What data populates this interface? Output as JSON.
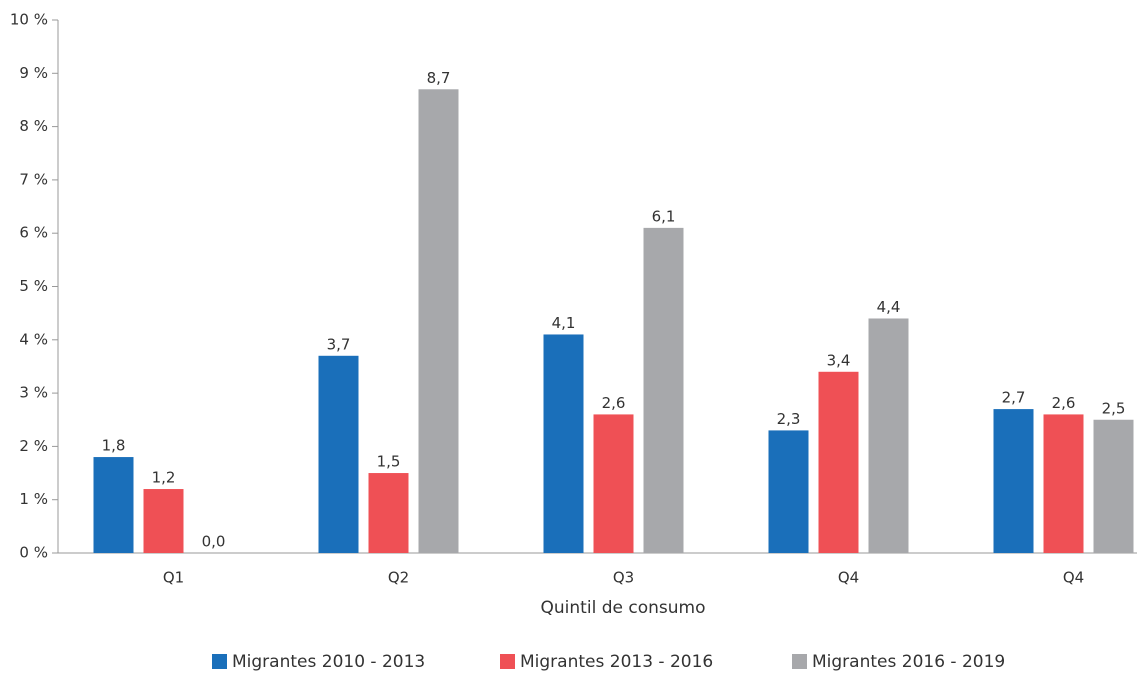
{
  "chart_data": {
    "type": "bar",
    "xlabel": "Quintil de consumo",
    "categories": [
      "Q1",
      "Q2",
      "Q3",
      "Q4",
      "Q4"
    ],
    "series": [
      {
        "name": "Migrantes 2010 - 2013",
        "color": "#1a6fba",
        "values": [
          1.8,
          3.7,
          4.1,
          2.3,
          2.7
        ],
        "value_labels": [
          "1,8",
          "3,7",
          "4,1",
          "2,3",
          "2,7"
        ]
      },
      {
        "name": "Migrantes 2013 - 2016",
        "color": "#ef5055",
        "values": [
          1.2,
          1.5,
          2.6,
          3.4,
          2.6
        ],
        "value_labels": [
          "1,2",
          "1,5",
          "2,6",
          "3,4",
          "2,6"
        ]
      },
      {
        "name": "Migrantes 2016 - 2019",
        "color": "#a7a8ab",
        "values": [
          0.0,
          8.7,
          6.1,
          4.4,
          2.5
        ],
        "value_labels": [
          "0,0",
          "8,7",
          "6,1",
          "4,4",
          "2,5"
        ]
      }
    ],
    "ylim": [
      0,
      10
    ],
    "yticks": [
      {
        "value": 0,
        "label": "0 %"
      },
      {
        "value": 1,
        "label": "1 %"
      },
      {
        "value": 2,
        "label": "2 %"
      },
      {
        "value": 3,
        "label": "3 %"
      },
      {
        "value": 4,
        "label": "4 %"
      },
      {
        "value": 5,
        "label": "5 %"
      },
      {
        "value": 6,
        "label": "6 %"
      },
      {
        "value": 7,
        "label": "7 %"
      },
      {
        "value": 8,
        "label": "8 %"
      },
      {
        "value": 9,
        "label": "9 %"
      },
      {
        "value": 10,
        "label": "10 %"
      }
    ],
    "grid": false,
    "legend": "bottom"
  }
}
